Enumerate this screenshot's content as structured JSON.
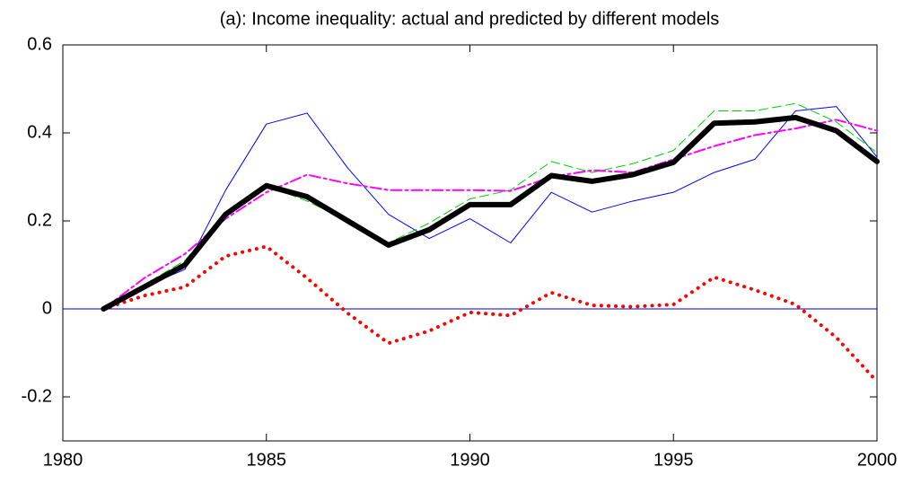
{
  "chart_data": {
    "type": "line",
    "title": "(a): Income inequality: actual and predicted by different models",
    "x": [
      1981,
      1982,
      1983,
      1984,
      1985,
      1986,
      1987,
      1988,
      1989,
      1990,
      1991,
      1992,
      1993,
      1994,
      1995,
      1996,
      1997,
      1998,
      1999,
      2000
    ],
    "series": [
      {
        "color": "#0000ff",
        "width": 1,
        "dash": "none",
        "values": [
          0,
          0.05,
          0.09,
          0.27,
          0.42,
          0.445,
          0.32,
          0.215,
          0.16,
          0.205,
          0.15,
          0.265,
          0.22,
          0.245,
          0.265,
          0.31,
          0.34,
          0.45,
          0.46,
          0.345
        ]
      },
      {
        "color": "#00cc00",
        "width": 1,
        "dash": "10 5",
        "values": [
          0,
          0.055,
          0.11,
          0.22,
          0.28,
          0.245,
          0.2,
          0.15,
          0.195,
          0.25,
          0.27,
          0.335,
          0.31,
          0.33,
          0.36,
          0.45,
          0.45,
          0.467,
          0.425,
          0.355
        ]
      },
      {
        "color": "#ff00ff",
        "width": 2,
        "dash": "12 4 3 4",
        "values": [
          0,
          0.07,
          0.125,
          0.205,
          0.265,
          0.305,
          0.285,
          0.27,
          0.27,
          0.27,
          0.268,
          0.3,
          0.315,
          0.31,
          0.34,
          0.37,
          0.395,
          0.41,
          0.43,
          0.405
        ]
      },
      {
        "color": "#ff0000",
        "width": 4,
        "dash": "0.1 8",
        "values": [
          0,
          0.03,
          0.05,
          0.12,
          0.142,
          0.07,
          -0.01,
          -0.078,
          -0.05,
          -0.008,
          -0.015,
          0.037,
          0.008,
          0.005,
          0.01,
          0.072,
          0.043,
          0.01,
          -0.065,
          -0.165
        ]
      },
      {
        "color": "#000000",
        "width": 6,
        "dash": "none",
        "values": [
          0,
          0.05,
          0.1,
          0.215,
          0.28,
          0.255,
          0.2,
          0.145,
          0.18,
          0.237,
          0.237,
          0.303,
          0.29,
          0.305,
          0.333,
          0.422,
          0.425,
          0.435,
          0.405,
          0.335
        ]
      }
    ],
    "hlines": [
      {
        "y": 0,
        "color": "#0000cc"
      }
    ],
    "xlim": [
      1980,
      2000
    ],
    "xticks": [
      1980,
      1985,
      1990,
      1995,
      2000
    ],
    "ylim": [
      -0.3,
      0.6
    ],
    "yticks": [
      -0.2,
      0,
      0.2,
      0.4,
      0.6
    ],
    "grid": false
  }
}
